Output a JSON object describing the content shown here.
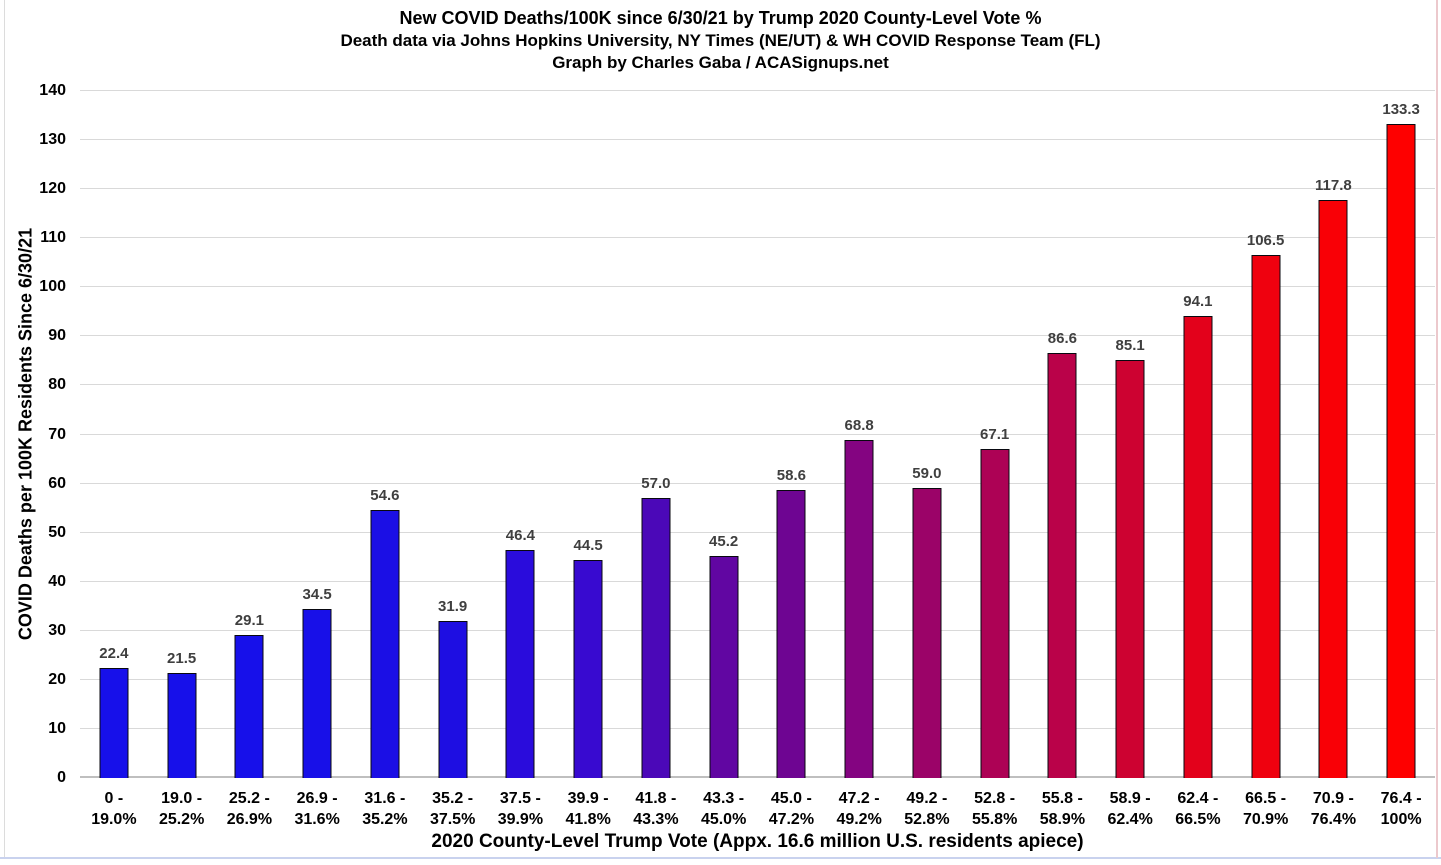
{
  "header": {
    "title": "New COVID Deaths/100K since 6/30/21 by Trump 2020 County-Level Vote %",
    "subtitle1": "Death data via Johns Hopkins University, NY Times (NE/UT) & WH COVID Response Team (FL)",
    "subtitle2": "Graph by Charles Gaba / ACASignups.net"
  },
  "chart_data": {
    "type": "bar",
    "title": "New COVID Deaths/100K since 6/30/21 by Trump 2020 County-Level Vote %",
    "subtitle1": "Death data via Johns Hopkins University, NY Times (NE/UT) & WH COVID Response Team (FL)",
    "subtitle2": "Graph by Charles Gaba / ACASignups.net",
    "xlabel": "2020 County-Level Trump Vote (Appx. 16.6 million U.S. residents apiece)",
    "ylabel": "COVID Deaths per 100K Residents Since 6/30/21",
    "ylim": [
      0,
      140
    ],
    "ytick_step": 10,
    "grid": true,
    "legend_position": "none",
    "categories": [
      "0 - 19.0%",
      "19.0 - 25.2%",
      "25.2 - 26.9%",
      "26.9 - 31.6%",
      "31.6 - 35.2%",
      "35.2 - 37.5%",
      "37.5 - 39.9%",
      "39.9 - 41.8%",
      "41.8 - 43.3%",
      "43.3 - 45.0%",
      "45.0 - 47.2%",
      "47.2 - 49.2%",
      "49.2 - 52.8%",
      "52.8 - 55.8%",
      "55.8 - 58.9%",
      "58.9 - 62.4%",
      "62.4 - 66.5%",
      "66.5 - 70.9%",
      "70.9 - 76.4%",
      "76.4 - 100%"
    ],
    "tick_label_lines": [
      [
        "0 -",
        "19.0%"
      ],
      [
        "19.0 -",
        "25.2%"
      ],
      [
        "25.2 -",
        "26.9%"
      ],
      [
        "26.9 -",
        "31.6%"
      ],
      [
        "31.6 -",
        "35.2%"
      ],
      [
        "35.2 -",
        "37.5%"
      ],
      [
        "37.5 -",
        "39.9%"
      ],
      [
        "39.9 -",
        "41.8%"
      ],
      [
        "41.8 -",
        "43.3%"
      ],
      [
        "43.3 -",
        "45.0%"
      ],
      [
        "45.0 -",
        "47.2%"
      ],
      [
        "47.2 -",
        "49.2%"
      ],
      [
        "49.2 -",
        "52.8%"
      ],
      [
        "52.8 -",
        "55.8%"
      ],
      [
        "55.8 -",
        "58.9%"
      ],
      [
        "58.9 -",
        "62.4%"
      ],
      [
        "62.4 -",
        "66.5%"
      ],
      [
        "66.5 -",
        "70.9%"
      ],
      [
        "70.9 -",
        "76.4%"
      ],
      [
        "76.4 -",
        "100%"
      ]
    ],
    "values": [
      22.4,
      21.5,
      29.1,
      34.5,
      54.6,
      31.9,
      46.4,
      44.5,
      57.0,
      45.2,
      58.6,
      68.8,
      59.0,
      67.1,
      86.6,
      85.1,
      94.1,
      106.5,
      117.8,
      133.3
    ],
    "bar_colors": [
      "#1710ea",
      "#1710ea",
      "#1710ea",
      "#1810e8",
      "#1b0fe5",
      "#1e0ee2",
      "#2a0cdc",
      "#380ad0",
      "#4b08b8",
      "#6106a2",
      "#6e0592",
      "#840481",
      "#9b0368",
      "#ad0255",
      "#ba0249",
      "#cd0231",
      "#e3011b",
      "#ef010f",
      "#f90006",
      "#fe0000"
    ],
    "value_label_color": "#3f3f3f",
    "gridline_color": "#d9d9d9",
    "axis_line_color": "#bfbfbf",
    "value_decimals": 1
  }
}
